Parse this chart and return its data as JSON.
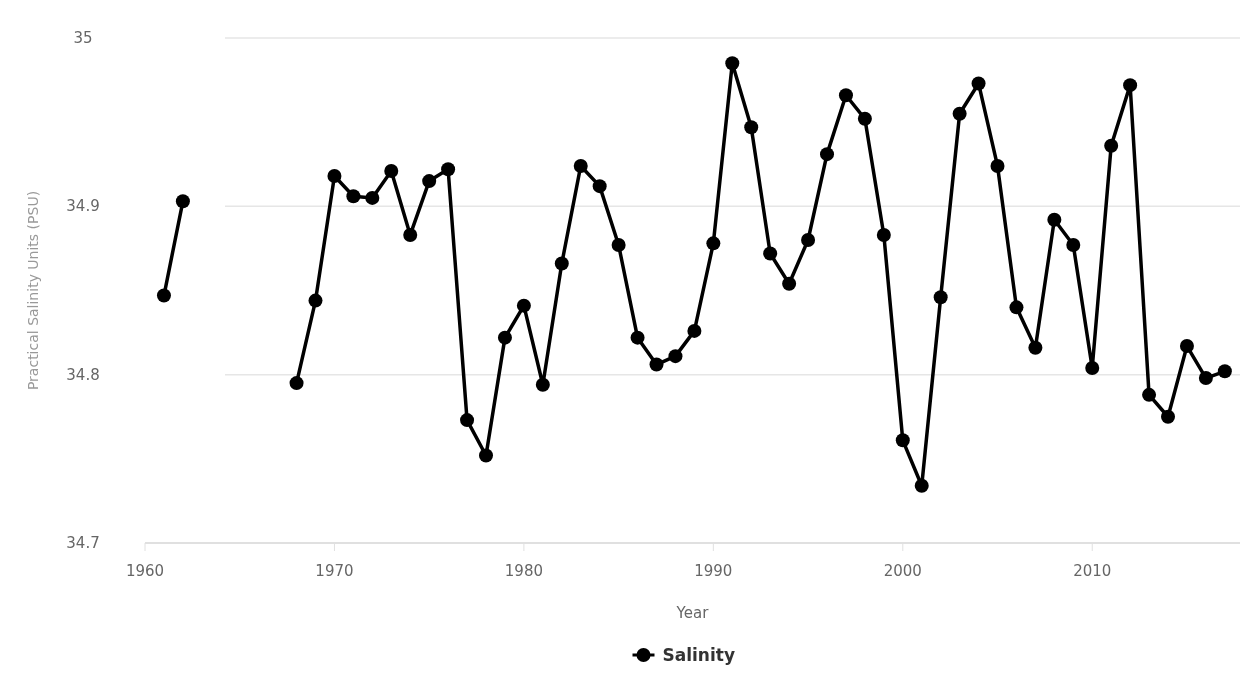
{
  "chart_data": {
    "type": "line",
    "xlabel": "Year",
    "ylabel": "Practical Salinity Units (PSU)",
    "x": [
      1961,
      1962,
      1963,
      1964,
      1965,
      1966,
      1967,
      1968,
      1969,
      1970,
      1971,
      1972,
      1973,
      1974,
      1975,
      1976,
      1977,
      1978,
      1979,
      1980,
      1981,
      1982,
      1983,
      1984,
      1985,
      1986,
      1987,
      1988,
      1989,
      1990,
      1991,
      1992,
      1993,
      1994,
      1995,
      1996,
      1997,
      1998,
      1999,
      2000,
      2001,
      2002,
      2003,
      2004,
      2005,
      2006,
      2007,
      2008,
      2009,
      2010,
      2011,
      2012,
      2013,
      2014,
      2015,
      2016,
      2017
    ],
    "series": [
      {
        "name": "Salinity",
        "color": "#000000",
        "values": [
          34.847,
          34.903,
          null,
          null,
          null,
          null,
          null,
          34.795,
          34.844,
          34.918,
          34.906,
          34.905,
          34.921,
          34.883,
          34.915,
          34.922,
          34.773,
          34.752,
          34.822,
          34.841,
          34.794,
          34.866,
          34.924,
          34.912,
          34.877,
          34.822,
          34.806,
          34.811,
          34.826,
          34.878,
          34.985,
          34.947,
          34.872,
          34.854,
          34.88,
          34.931,
          34.966,
          34.952,
          34.883,
          34.761,
          34.734,
          34.846,
          34.955,
          34.973,
          34.924,
          34.84,
          34.816,
          34.892,
          34.877,
          34.804,
          34.936,
          34.972,
          34.788,
          34.775,
          34.817,
          34.798,
          34.802
        ]
      }
    ],
    "xlim": [
      1960,
      2017.8
    ],
    "xticks": [
      1960,
      1970,
      1980,
      1990,
      2000,
      2010
    ],
    "ylim": [
      34.7,
      35
    ],
    "yticks": [
      34.7,
      34.8,
      34.9,
      35
    ],
    "grid": "y",
    "legend": "bottom",
    "marker": "circle",
    "line_style": "solid"
  }
}
